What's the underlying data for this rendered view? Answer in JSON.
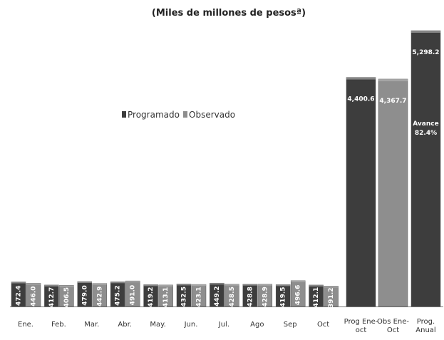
{
  "chart_data": {
    "type": "bar",
    "title": "(Miles de millones de pesosª)",
    "legend": [
      "Programado",
      "Observado"
    ],
    "legend_placement": "left-middle",
    "categories": [
      "Ene.",
      "Feb.",
      "Mar.",
      "Abr.",
      "May.",
      "Jun.",
      "Jul.",
      "Ago",
      "Sep",
      "Oct"
    ],
    "series": [
      {
        "name": "Programado",
        "color": "#3d3d3d",
        "values": [
          472.4,
          412.7,
          479.0,
          475.2,
          419.2,
          432.5,
          449.2,
          428.8,
          419.5,
          412.1
        ]
      },
      {
        "name": "Observado",
        "color": "#8e8e8e",
        "values": [
          446.0,
          406.5,
          442.9,
          491.0,
          413.1,
          423.1,
          428.5,
          428.9,
          496.6,
          391.2
        ]
      }
    ],
    "totals": [
      {
        "label": "Prog Ene-oct",
        "value": 4400.6,
        "value_label": "4,400.6",
        "color": "#3d3d3d"
      },
      {
        "label": "Obs Ene-Oct",
        "value": 4367.7,
        "value_label": "4,367.7",
        "color": "#8e8e8e"
      },
      {
        "label": "Prog. Anual",
        "value": 5298.2,
        "value_label": "5,298.2",
        "color": "#3d3d3d",
        "annotation": [
          "Avance",
          "82.4%"
        ]
      }
    ],
    "ylim": [
      0,
      5298.2
    ],
    "grid": false
  }
}
